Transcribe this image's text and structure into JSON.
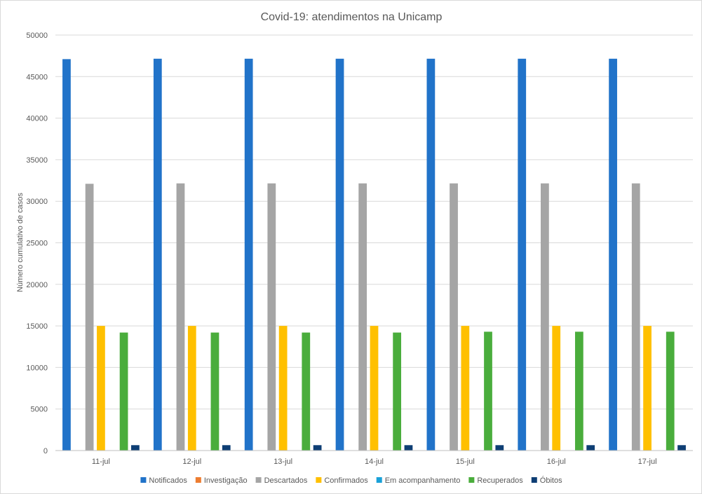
{
  "chart_data": {
    "type": "bar",
    "title": "Covid-19: atendimentos na Unicamp",
    "xlabel": "",
    "ylabel": "Número  cumulativo de casos",
    "ylim": [
      0,
      50000
    ],
    "yticks": [
      0,
      5000,
      10000,
      15000,
      20000,
      25000,
      30000,
      35000,
      40000,
      45000,
      50000
    ],
    "grid": true,
    "legend_position": "bottom",
    "categories": [
      "11-jul",
      "12-jul",
      "13-jul",
      "14-jul",
      "15-jul",
      "16-jul",
      "17-jul"
    ],
    "series": [
      {
        "name": "Notificados",
        "color": "#2173c9",
        "values": [
          47100,
          47150,
          47150,
          47150,
          47150,
          47150,
          47150
        ]
      },
      {
        "name": "Investigação",
        "color": "#ed7d31",
        "values": [
          0,
          0,
          0,
          0,
          0,
          0,
          0
        ]
      },
      {
        "name": "Descartados",
        "color": "#a5a5a5",
        "values": [
          32100,
          32150,
          32150,
          32150,
          32150,
          32150,
          32150
        ]
      },
      {
        "name": "Confirmados",
        "color": "#ffc000",
        "values": [
          15000,
          15000,
          15000,
          15000,
          15000,
          15000,
          15000
        ]
      },
      {
        "name": "Em acompanhamento",
        "color": "#1aa1d8",
        "values": [
          0,
          0,
          0,
          0,
          0,
          0,
          0
        ]
      },
      {
        "name": "Recuperados",
        "color": "#4aad3c",
        "values": [
          14200,
          14200,
          14200,
          14200,
          14300,
          14300,
          14300
        ]
      },
      {
        "name": "Óbitos",
        "color": "#0e3e74",
        "values": [
          650,
          650,
          650,
          650,
          650,
          650,
          650
        ]
      }
    ]
  }
}
